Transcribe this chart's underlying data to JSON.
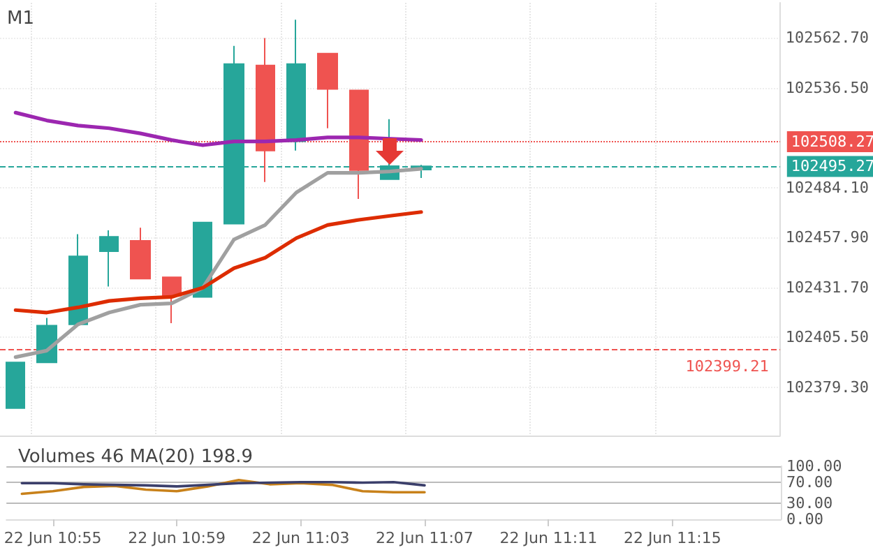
{
  "chart_data": [
    {
      "type": "candlestick",
      "title": "M1",
      "tick_labels": "y",
      "grid": true,
      "marker": "none",
      "line_style": "solid",
      "categories": [
        null,
        null,
        null,
        null,
        null,
        null,
        null,
        null,
        null,
        null,
        null,
        null,
        null,
        null,
        null,
        null,
        null,
        null,
        null,
        null,
        null,
        null,
        null,
        null,
        null
      ],
      "ylim": [
        102353.9,
        102581.2
      ],
      "yticks": [
        {
          "value": 102379.3,
          "label": "102379.30"
        },
        {
          "value": 102405.5,
          "label": "102405.50"
        },
        {
          "value": 102431.7,
          "label": "102431.70"
        },
        {
          "value": 102457.9,
          "label": "102457.90"
        },
        {
          "value": 102484.1,
          "label": "102484.10"
        },
        {
          "value": 102536.5,
          "label": "102536.50"
        },
        {
          "value": 102562.7,
          "label": "102562.70"
        }
      ],
      "series": [
        {
          "type": "candlestick",
          "ohlc": [
            [
              102368.3,
              102392.3,
              102368.3,
              102392.3
            ],
            [
              102392.3,
              102415.7,
              102392.3,
              102411.6
            ],
            [
              102412.3,
              102459.7,
              102412.3,
              102448.0
            ],
            [
              102450.7,
              102461.7,
              102432.2,
              102458.3
            ],
            [
              102456.2,
              102463.1,
              102436.3,
              102436.3
            ],
            [
              102437.0,
              102437.0,
              102412.9,
              102427.4
            ],
            [
              102426.7,
              102465.8,
              102426.7,
              102465.8
            ],
            [
              102465.2,
              102558.6,
              102465.2,
              102549.0
            ],
            [
              102548.3,
              102562.7,
              102487.1,
              102503.6
            ],
            [
              102508.4,
              102572.3,
              102503.6,
              102549.0
            ],
            [
              102554.5,
              102554.5,
              102515.3,
              102535.9
            ],
            [
              102535.2,
              102535.2,
              102478.2,
              102493.3
            ],
            [
              102488.5,
              102520.1,
              102488.5,
              102495.4
            ],
            [
              102493.6,
              102496.1,
              102489.2,
              102495.3
            ],
            null,
            null,
            null,
            null,
            null,
            null,
            null,
            null,
            null,
            null,
            null
          ],
          "colors": [
            "#26a69a",
            "#26a69a",
            "#26a69a",
            "#26a69a",
            "#ef5350",
            "#ef5350",
            "#26a69a",
            "#26a69a",
            "#ef5350",
            "#26a69a",
            "#ef5350",
            "#ef5350",
            "#26a69a",
            "#26a69a",
            null,
            null,
            null,
            null,
            null,
            null,
            null,
            null,
            null,
            null,
            null
          ]
        },
        {
          "type": "line",
          "color": "#9c27b0",
          "values": [
            102523.5,
            102519.4,
            102516.7,
            102515.3,
            102512.6,
            102509.1,
            102506.4,
            102508.4,
            102508.4,
            102509.1,
            102510.5,
            102510.5,
            102509.8,
            102509.1,
            null,
            null,
            null,
            null,
            null,
            null,
            null,
            null,
            null,
            null,
            null
          ]
        },
        {
          "type": "line",
          "color": "#a0a0a0",
          "values": [
            102395.1,
            102398.5,
            102412.3,
            102418.5,
            102422.6,
            102423.3,
            102431.5,
            102456.9,
            102464.5,
            102481.6,
            102491.9,
            102491.9,
            102492.6,
            102494.0,
            null,
            null,
            null,
            null,
            null,
            null,
            null,
            null,
            null,
            null,
            null
          ]
        },
        {
          "type": "line",
          "color": "#dd2c00",
          "values": [
            102419.8,
            102418.5,
            102421.2,
            102424.6,
            102426.0,
            102426.7,
            102431.5,
            102441.8,
            102447.3,
            102457.6,
            102464.5,
            102467.2,
            102469.3,
            102471.3,
            null,
            null,
            null,
            null,
            null,
            null,
            null,
            null,
            null,
            null,
            null
          ]
        }
      ],
      "ref_lines": [
        {
          "axis": "y",
          "value": 102508.27,
          "label": "102508.27",
          "color": "#ef5350",
          "line_style": "dotted"
        },
        {
          "axis": "y",
          "value": 102495.27,
          "label": "102495.27",
          "color": "#26a69a",
          "line_style": "dashed"
        },
        {
          "axis": "y",
          "value": 102399.21,
          "label": "102399.21",
          "color": "#ef5350",
          "line_style": "dashed"
        }
      ]
    },
    {
      "type": "line",
      "title": "Volumes 46 MA(20) 198.9",
      "grid": "y",
      "marker": "none",
      "line_style": "solid",
      "categories": [
        null,
        "22 Jun 10:55",
        null,
        null,
        null,
        "22 Jun 10:59",
        null,
        null,
        null,
        "22 Jun 11:03",
        null,
        null,
        null,
        "22 Jun 11:07",
        null,
        null,
        null,
        "22 Jun 11:11",
        null,
        null,
        null,
        "22 Jun 11:15",
        null,
        null,
        null
      ],
      "ylim": [
        0,
        100
      ],
      "yticks": [
        {
          "value": 0,
          "label": "0.00"
        },
        {
          "value": 30,
          "label": "30.00"
        },
        {
          "value": 70,
          "label": "70.00"
        },
        {
          "value": 100,
          "label": "100.00"
        }
      ],
      "series": [
        {
          "color": "#c8811a",
          "values": [
            48,
            53,
            61,
            63,
            56,
            53,
            62,
            74,
            66,
            68,
            65,
            53,
            51,
            51,
            null,
            null,
            null,
            null,
            null,
            null,
            null,
            null,
            null,
            null,
            null
          ]
        },
        {
          "color": "#3b3f6b",
          "values": [
            68,
            68,
            66,
            65,
            64,
            62,
            65,
            68,
            69,
            70,
            70,
            69,
            70,
            64,
            null,
            null,
            null,
            null,
            null,
            null,
            null,
            null,
            null,
            null,
            null
          ]
        }
      ]
    }
  ]
}
